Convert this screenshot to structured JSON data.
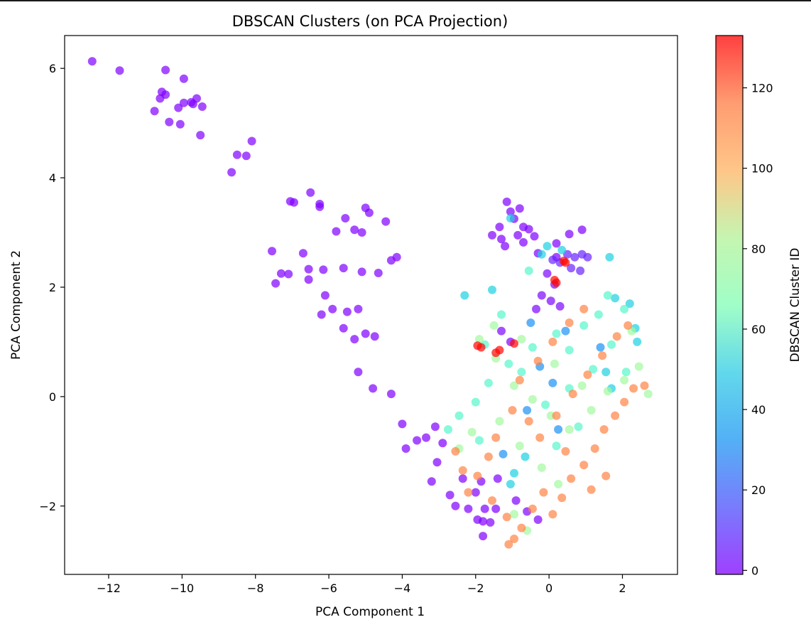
{
  "chart_data": {
    "type": "scatter",
    "title": "DBSCAN Clusters (on PCA Projection)",
    "xlabel": "PCA Component 1",
    "ylabel": "PCA Component 2",
    "xlim": [
      -13.2,
      3.5
    ],
    "ylim": [
      -3.25,
      6.6
    ],
    "xticks": [
      -12,
      -10,
      -8,
      -6,
      -4,
      -2,
      0,
      2
    ],
    "xtick_labels": [
      "−12",
      "−10",
      "−8",
      "−6",
      "−4",
      "−2",
      "0",
      "2"
    ],
    "yticks": [
      -2,
      0,
      2,
      4,
      6
    ],
    "ytick_labels": [
      "−2",
      "0",
      "2",
      "4",
      "6"
    ],
    "grid": false,
    "marker_alpha": 0.7,
    "colormap": "rainbow",
    "colorbar": {
      "label": "DBSCAN Cluster ID",
      "range": [
        -1,
        133
      ],
      "ticks": [
        0,
        20,
        40,
        60,
        80,
        100,
        120
      ],
      "tick_labels": [
        "0",
        "20",
        "40",
        "60",
        "80",
        "100",
        "120"
      ]
    },
    "series": [
      {
        "cluster": -1,
        "points": [
          [
            -12.45,
            6.13
          ],
          [
            -11.7,
            5.96
          ],
          [
            -10.45,
            5.97
          ],
          [
            -9.95,
            5.81
          ],
          [
            -10.55,
            5.57
          ],
          [
            -10.45,
            5.52
          ],
          [
            -10.6,
            5.45
          ],
          [
            -10.75,
            5.22
          ],
          [
            -10.1,
            5.28
          ],
          [
            -9.95,
            5.37
          ],
          [
            -9.75,
            5.38
          ],
          [
            -9.6,
            5.45
          ],
          [
            -9.45,
            5.3
          ],
          [
            -9.7,
            5.35
          ],
          [
            -10.35,
            5.02
          ],
          [
            -10.05,
            4.98
          ],
          [
            -9.5,
            4.78
          ],
          [
            -8.1,
            4.67
          ],
          [
            -8.5,
            4.42
          ],
          [
            -8.25,
            4.4
          ],
          [
            -8.65,
            4.1
          ],
          [
            -7.05,
            3.57
          ],
          [
            -6.95,
            3.55
          ],
          [
            -6.5,
            3.73
          ],
          [
            -6.25,
            3.52
          ],
          [
            -6.25,
            3.47
          ],
          [
            -5.0,
            3.45
          ],
          [
            -4.9,
            3.36
          ],
          [
            -5.55,
            3.26
          ],
          [
            -4.45,
            3.2
          ],
          [
            -5.8,
            3.02
          ],
          [
            -5.3,
            3.05
          ],
          [
            -5.1,
            3.0
          ],
          [
            -7.55,
            2.66
          ],
          [
            -6.7,
            2.62
          ],
          [
            -7.3,
            2.25
          ],
          [
            -7.1,
            2.24
          ],
          [
            -6.55,
            2.33
          ],
          [
            -7.45,
            2.07
          ],
          [
            -6.55,
            2.14
          ],
          [
            -6.15,
            2.32
          ],
          [
            -5.6,
            2.35
          ],
          [
            -5.1,
            2.28
          ],
          [
            -4.65,
            2.26
          ],
          [
            -4.3,
            2.49
          ],
          [
            -4.15,
            2.55
          ],
          [
            -6.1,
            1.85
          ],
          [
            -5.9,
            1.6
          ],
          [
            -6.2,
            1.5
          ],
          [
            -5.5,
            1.55
          ],
          [
            -5.2,
            1.6
          ],
          [
            -5.6,
            1.25
          ],
          [
            -5.3,
            1.05
          ],
          [
            -5.0,
            1.15
          ],
          [
            -4.75,
            1.1
          ],
          [
            -5.2,
            0.45
          ],
          [
            -4.8,
            0.15
          ],
          [
            -4.3,
            0.05
          ],
          [
            -4.0,
            -0.5
          ],
          [
            -3.9,
            -0.95
          ],
          [
            -3.6,
            -0.8
          ],
          [
            -3.35,
            -0.75
          ],
          [
            -3.1,
            -0.55
          ],
          [
            -2.9,
            -0.85
          ],
          [
            -3.2,
            -1.55
          ],
          [
            -3.05,
            -1.2
          ],
          [
            -2.7,
            -1.8
          ],
          [
            -2.55,
            -2.0
          ],
          [
            -2.35,
            -1.5
          ],
          [
            -2.2,
            -2.05
          ],
          [
            -2.0,
            -1.75
          ],
          [
            -1.95,
            -2.25
          ],
          [
            -1.8,
            -2.55
          ],
          [
            -1.75,
            -2.05
          ],
          [
            -1.8,
            -2.28
          ],
          [
            -1.85,
            -1.55
          ],
          [
            -1.6,
            -2.3
          ],
          [
            -1.45,
            -2.05
          ],
          [
            -1.15,
            3.56
          ],
          [
            -0.8,
            3.44
          ],
          [
            -1.05,
            3.38
          ],
          [
            -0.95,
            3.25
          ],
          [
            -0.7,
            3.1
          ],
          [
            -1.35,
            3.1
          ],
          [
            -1.55,
            2.95
          ],
          [
            -1.3,
            2.88
          ],
          [
            -1.2,
            2.75
          ],
          [
            -0.85,
            2.95
          ],
          [
            -0.7,
            2.82
          ],
          [
            -0.55,
            3.06
          ],
          [
            -0.4,
            2.93
          ],
          [
            0.2,
            2.8
          ],
          [
            0.55,
            2.97
          ],
          [
            0.9,
            3.05
          ],
          [
            -0.3,
            2.62
          ],
          [
            0.2,
            2.55
          ],
          [
            -0.9,
            -1.9
          ],
          [
            -0.6,
            -2.1
          ],
          [
            -0.3,
            -2.25
          ],
          [
            -1.4,
            -1.5
          ]
        ]
      },
      {
        "cluster": 0,
        "points": [
          [
            -0.2,
            1.85
          ],
          [
            0.05,
            1.75
          ],
          [
            -0.35,
            1.6
          ],
          [
            0.3,
            1.65
          ],
          [
            -1.3,
            1.2
          ],
          [
            -1.05,
            1.0
          ],
          [
            0.15,
            2.05
          ],
          [
            -0.05,
            2.25
          ]
        ]
      },
      {
        "cluster": 5,
        "points": [
          [
            0.1,
            2.5
          ],
          [
            0.3,
            2.45
          ],
          [
            0.5,
            2.6
          ],
          [
            0.7,
            2.55
          ],
          [
            0.9,
            2.6
          ],
          [
            1.05,
            2.55
          ],
          [
            0.6,
            2.35
          ],
          [
            0.85,
            2.3
          ]
        ]
      },
      {
        "cluster": 25,
        "points": [
          [
            -0.25,
            0.55
          ],
          [
            0.1,
            0.25
          ],
          [
            -0.6,
            -0.25
          ],
          [
            0.25,
            -0.6
          ],
          [
            -1.25,
            -1.05
          ],
          [
            0.45,
            1.2
          ],
          [
            1.4,
            0.9
          ],
          [
            -0.5,
            1.35
          ]
        ]
      },
      {
        "cluster": 40,
        "points": [
          [
            -1.05,
            3.26
          ],
          [
            -0.2,
            2.6
          ],
          [
            -0.05,
            2.75
          ],
          [
            0.35,
            2.68
          ],
          [
            1.65,
            2.55
          ],
          [
            1.8,
            1.8
          ],
          [
            2.2,
            1.7
          ],
          [
            2.35,
            1.25
          ],
          [
            2.4,
            1.0
          ],
          [
            -2.3,
            1.85
          ],
          [
            -1.55,
            1.95
          ],
          [
            -0.95,
            -1.4
          ],
          [
            -1.05,
            -1.6
          ],
          [
            -0.65,
            -1.1
          ],
          [
            1.55,
            0.45
          ],
          [
            1.7,
            0.15
          ]
        ]
      },
      {
        "cluster": 55,
        "points": [
          [
            -0.55,
            2.3
          ],
          [
            -1.3,
            1.5
          ],
          [
            -1.75,
            0.95
          ],
          [
            -1.1,
            0.6
          ],
          [
            -0.75,
            0.45
          ],
          [
            -0.45,
            0.9
          ],
          [
            0.2,
            1.15
          ],
          [
            0.55,
            0.85
          ],
          [
            0.95,
            1.3
          ],
          [
            1.35,
            1.5
          ],
          [
            1.6,
            1.85
          ],
          [
            2.05,
            1.6
          ],
          [
            -1.65,
            0.25
          ],
          [
            -2.0,
            -0.1
          ],
          [
            -2.45,
            -0.35
          ],
          [
            -2.75,
            -0.6
          ],
          [
            -0.1,
            -0.15
          ],
          [
            0.55,
            0.15
          ],
          [
            1.2,
            0.5
          ],
          [
            1.7,
            0.95
          ],
          [
            2.1,
            0.45
          ],
          [
            -1.9,
            -0.8
          ],
          [
            0.2,
            -0.9
          ],
          [
            0.8,
            -0.55
          ]
        ]
      },
      {
        "cluster": 75,
        "points": [
          [
            -1.9,
            1.05
          ],
          [
            -1.45,
            0.7
          ],
          [
            -0.95,
            0.2
          ],
          [
            -0.45,
            -0.05
          ],
          [
            0.05,
            -0.35
          ],
          [
            0.55,
            -0.6
          ],
          [
            1.15,
            -0.25
          ],
          [
            1.6,
            0.1
          ],
          [
            2.05,
            0.3
          ],
          [
            2.45,
            0.55
          ],
          [
            2.7,
            0.05
          ],
          [
            -2.45,
            -0.95
          ],
          [
            -2.1,
            -0.65
          ],
          [
            -1.35,
            -0.45
          ],
          [
            -0.8,
            -0.9
          ],
          [
            -0.2,
            -1.3
          ],
          [
            0.25,
            -1.6
          ],
          [
            -1.5,
            1.3
          ],
          [
            -0.75,
            1.05
          ],
          [
            0.15,
            0.6
          ],
          [
            0.9,
            0.2
          ],
          [
            2.25,
            1.2
          ],
          [
            -0.95,
            -2.15
          ],
          [
            -0.6,
            -2.45
          ]
        ]
      },
      {
        "cluster": 110,
        "points": [
          [
            -2.55,
            -1.0
          ],
          [
            -2.35,
            -1.35
          ],
          [
            -2.2,
            -1.75
          ],
          [
            -1.95,
            -1.45
          ],
          [
            -1.65,
            -1.1
          ],
          [
            -1.55,
            -1.9
          ],
          [
            -1.15,
            -2.2
          ],
          [
            -0.95,
            -2.6
          ],
          [
            -0.75,
            -2.4
          ],
          [
            -1.1,
            -2.7
          ],
          [
            -0.45,
            -2.05
          ],
          [
            -0.15,
            -1.75
          ],
          [
            0.1,
            -2.15
          ],
          [
            0.35,
            -1.85
          ],
          [
            0.6,
            -1.5
          ],
          [
            0.95,
            -1.25
          ],
          [
            1.25,
            -0.95
          ],
          [
            1.5,
            -0.6
          ],
          [
            1.8,
            -0.35
          ],
          [
            2.05,
            -0.1
          ],
          [
            2.3,
            0.15
          ],
          [
            2.6,
            0.2
          ],
          [
            -0.55,
            -0.45
          ],
          [
            -0.25,
            -0.75
          ],
          [
            0.2,
            -0.35
          ],
          [
            0.65,
            0.05
          ],
          [
            1.05,
            0.4
          ],
          [
            1.45,
            0.75
          ],
          [
            1.85,
            1.1
          ],
          [
            2.15,
            1.3
          ],
          [
            -0.3,
            0.65
          ],
          [
            0.1,
            1.0
          ],
          [
            0.55,
            1.35
          ],
          [
            0.95,
            1.6
          ],
          [
            -1.0,
            -0.25
          ],
          [
            -0.8,
            0.3
          ],
          [
            -1.45,
            -0.75
          ],
          [
            0.45,
            -1.0
          ],
          [
            1.55,
            -1.45
          ],
          [
            1.15,
            -1.7
          ]
        ]
      },
      {
        "cluster": 132,
        "points": [
          [
            0.4,
            2.48
          ],
          [
            0.45,
            2.45
          ],
          [
            0.15,
            2.13
          ],
          [
            0.2,
            2.08
          ],
          [
            -1.95,
            0.93
          ],
          [
            -1.85,
            0.9
          ],
          [
            -1.45,
            0.8
          ],
          [
            -1.35,
            0.85
          ],
          [
            -0.95,
            0.97
          ]
        ]
      }
    ]
  }
}
